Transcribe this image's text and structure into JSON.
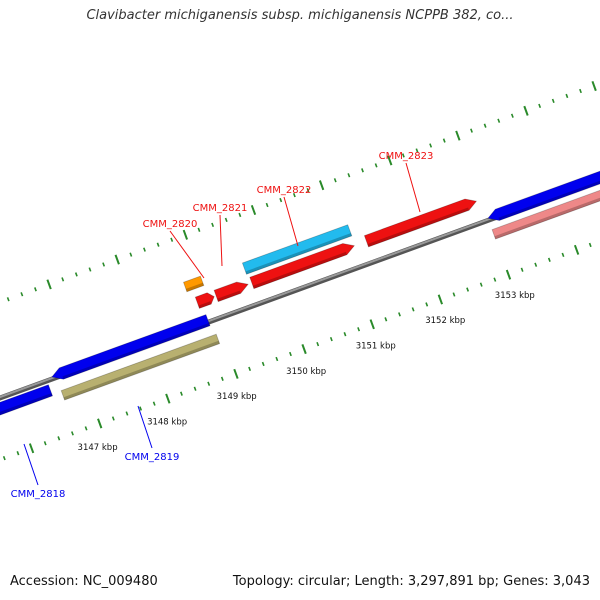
{
  "title": "Clavibacter michiganensis subsp. michiganensis NCPPB 382, co...",
  "footer": {
    "accession": "Accession: NC_009480",
    "stats": "Topology: circular; Length: 3,297,891 bp; Genes: 3,043"
  },
  "colors": {
    "backbone": "#808080",
    "ticks": "#2a8a2a",
    "forward_gene": "#ee1111",
    "reverse_gene": "#0000ee",
    "cyan_feature": "#22bbee",
    "orange_feature": "#ff9900",
    "olive_feature": "#b8b070",
    "pink_feature": "#ee8888"
  },
  "scale_labels": [
    "3147 kbp",
    "3148 kbp",
    "3149 kbp",
    "3150 kbp",
    "3151 kbp",
    "3152 kbp",
    "3153 kbp"
  ],
  "gene_labels": [
    {
      "id": "CMM_2818",
      "strand": "reverse"
    },
    {
      "id": "CMM_2819",
      "strand": "reverse"
    },
    {
      "id": "CMM_2820",
      "strand": "forward"
    },
    {
      "id": "CMM_2821",
      "strand": "forward"
    },
    {
      "id": "CMM_2822",
      "strand": "forward"
    },
    {
      "id": "CMM_2823",
      "strand": "forward"
    }
  ]
}
